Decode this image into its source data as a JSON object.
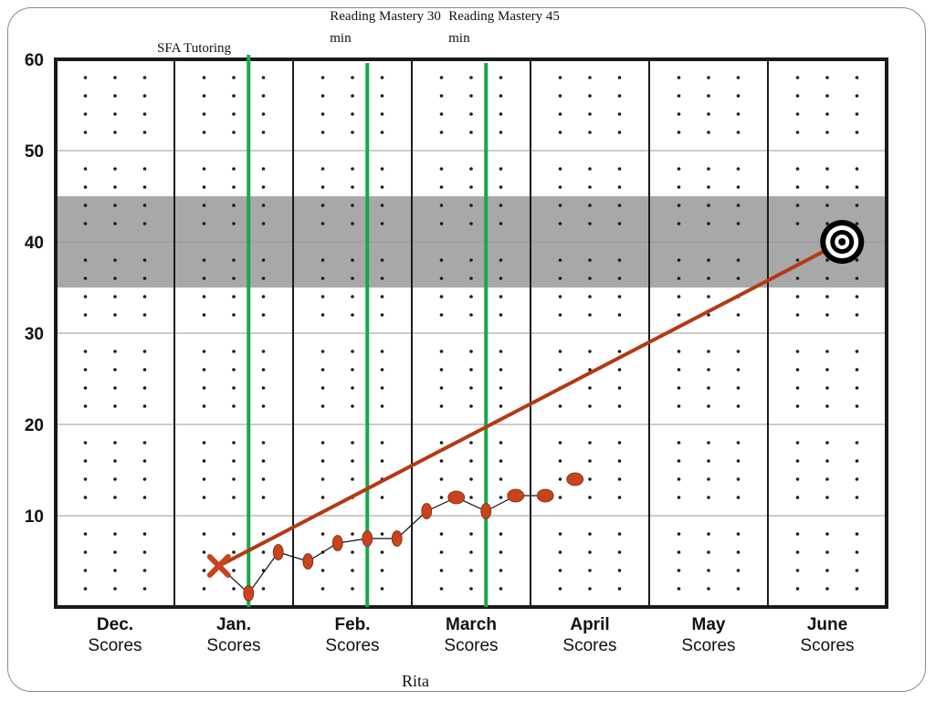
{
  "slide": {
    "caption": "Rita"
  },
  "colors": {
    "phase_line": "#17a84a",
    "aimline": "#b33a12",
    "data_point": "#c9431c",
    "goal_band": "#a8a8a8",
    "grid_border": "#1a1a1a"
  },
  "chart_data": {
    "type": "line",
    "title": "",
    "ylabel": "",
    "xlabel": "",
    "ylim": [
      0,
      60
    ],
    "yticks": [
      "10",
      "20",
      "30",
      "40",
      "50",
      "60"
    ],
    "months": [
      {
        "name": "Dec.",
        "sub": "Scores"
      },
      {
        "name": "Jan.",
        "sub": "Scores"
      },
      {
        "name": "Feb.",
        "sub": "Scores"
      },
      {
        "name": "March",
        "sub": "Scores"
      },
      {
        "name": "April",
        "sub": "Scores"
      },
      {
        "name": "May",
        "sub": "Scores"
      },
      {
        "name": "June",
        "sub": "Scores"
      }
    ],
    "weeks_per_month": 4,
    "goal_band": [
      35,
      45
    ],
    "phase_changes": [
      {
        "week": 6,
        "label": "SFA Tutoring"
      },
      {
        "week": 10,
        "label": "Reading Mastery 30 min"
      },
      {
        "week": 14,
        "label": "Reading Mastery 45 min"
      }
    ],
    "aimline": {
      "start": {
        "week": 5,
        "value": 4.5
      },
      "goal": {
        "week": 26,
        "value": 40
      }
    },
    "series": [
      {
        "points": [
          {
            "week": 5,
            "value": 4.5
          },
          {
            "week": 6,
            "value": 1.5
          },
          {
            "week": 7,
            "value": 6
          },
          {
            "week": 8,
            "value": 5
          },
          {
            "week": 9,
            "value": 7
          },
          {
            "week": 10,
            "value": 7.5
          },
          {
            "week": 11,
            "value": 7.5
          },
          {
            "week": 12,
            "value": 10.5
          },
          {
            "week": 13,
            "value": 12
          },
          {
            "week": 14,
            "value": 10.5
          },
          {
            "week": 15,
            "value": 12.2
          },
          {
            "week": 16,
            "value": 12.2
          },
          {
            "week": 17,
            "value": 14
          }
        ]
      }
    ],
    "connected_until_week": 16
  }
}
